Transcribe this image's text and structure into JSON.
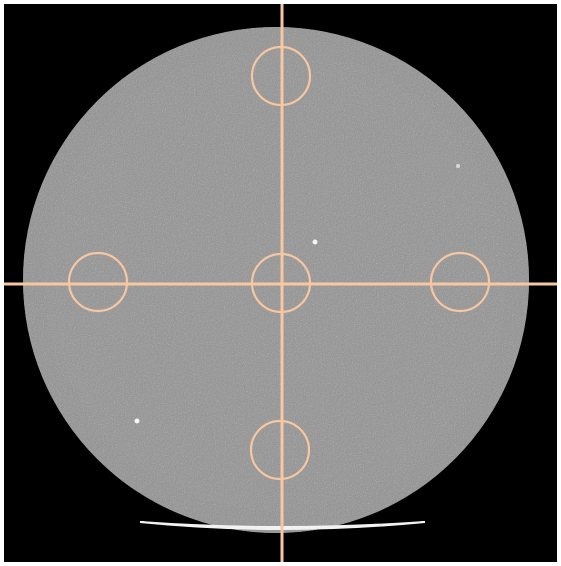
{
  "image": {
    "type": "CT cross-section of a cylindrical water phantom",
    "background_color": "#000000",
    "phantom_fill": "#9a9a9a",
    "overlay_color": "#f6c7a1",
    "table_highlight": "#f2f2f2"
  },
  "overlay": {
    "crosshair": "horizontal-and-vertical-lines",
    "roi_count": 5,
    "roi_labels": [
      "top",
      "left",
      "center",
      "right",
      "bottom"
    ]
  }
}
